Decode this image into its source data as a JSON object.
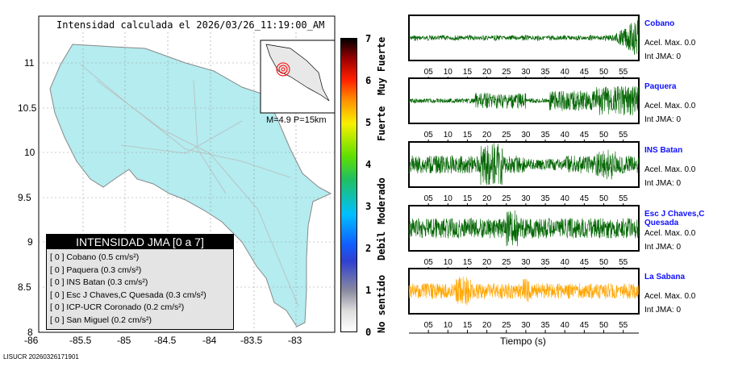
{
  "title": "Intensidad calculada el 2026/03/26_11:19:00_AM",
  "footer": "LISUCR 20260326171901",
  "inset_label": "M=4.9 P=15km",
  "map": {
    "lon_ticks": [
      "-86",
      "-85.5",
      "-85",
      "-84.5",
      "-84",
      "-83.5",
      "-83"
    ],
    "lat_ticks": [
      "11",
      "10.5",
      "10",
      "9.5",
      "9",
      "8.5",
      "8"
    ]
  },
  "colorbar": {
    "ticks": [
      "0",
      "1",
      "2",
      "3",
      "4",
      "5",
      "6",
      "7"
    ],
    "categories": [
      "No sentido",
      "Debil",
      "Moderado",
      "Fuerte",
      "Muy Fuerte"
    ]
  },
  "legend": {
    "title": "INTENSIDAD JMA [0 a 7]",
    "items": [
      "[ 0 ]  Cobano (0.5 cm/s²)",
      "[ 0 ]  Paquera (0.3 cm/s²)",
      "[ 0 ]  INS Batan (0.3 cm/s²)",
      "[ 0 ]  Esc J Chaves,C Quesada (0.3 cm/s²)",
      "[ 0 ]  ICP-UCR Coronado (0.2 cm/s²)",
      "[ 0 ]  San Miguel (0.2 cm/s²)"
    ]
  },
  "chart_data": {
    "type": "line",
    "xlabel": "Tiempo (s)",
    "x_ticks": [
      "05",
      "10",
      "15",
      "20",
      "25",
      "30",
      "35",
      "40",
      "45",
      "50",
      "55"
    ],
    "xlim": [
      0,
      59
    ],
    "series": [
      {
        "name": "Cobano",
        "acel": "Acel. Max. 0.0",
        "int": "Int JMA: 0",
        "color": "#006400"
      },
      {
        "name": "Paquera",
        "acel": "Acel. Max. 0.0",
        "int": "Int JMA: 0",
        "color": "#006400"
      },
      {
        "name": "INS Batan",
        "acel": "Acel. Max. 0.0",
        "int": "Int JMA: 0",
        "color": "#006400"
      },
      {
        "name": "Esc J Chaves,C Quesada",
        "acel": "Acel. Max. 0.0",
        "int": "Int JMA: 0",
        "color": "#006400"
      },
      {
        "name": "La Sabana",
        "acel": "Acel. Max. 0.0",
        "int": "Int JMA: 0",
        "color": "#ffa500"
      }
    ]
  }
}
